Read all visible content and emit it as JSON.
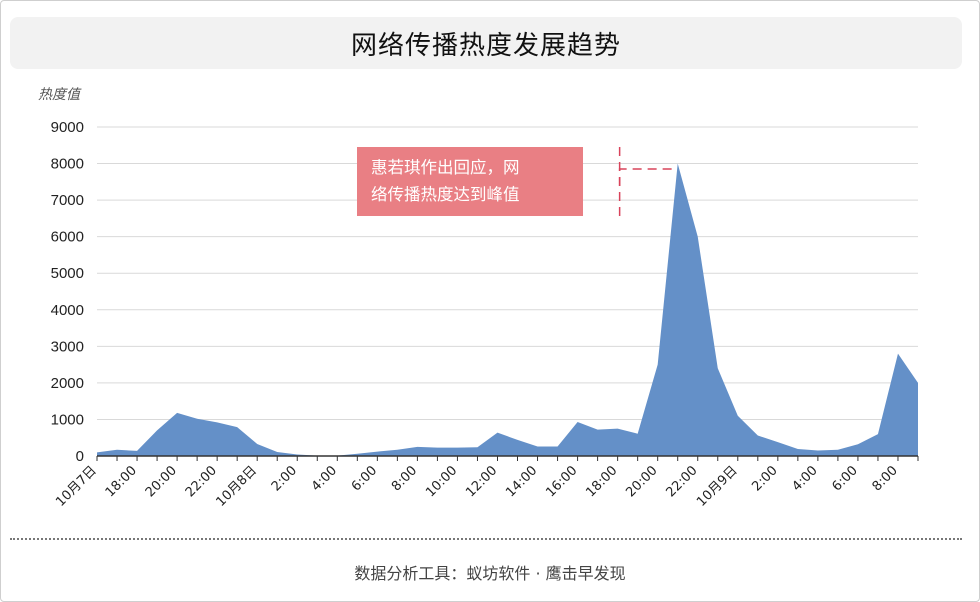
{
  "title": "网络传播热度发展趋势",
  "source": "数据分析工具：蚁坊软件 · 鹰击早发现",
  "annotation": {
    "line1": "惠若琪作出回应，网",
    "line2": "络传播热度达到峰值"
  },
  "colors": {
    "area": "#6490c8",
    "annotation_bg": "#e97f84",
    "annotation_line": "#d9435a",
    "grid": "#d9d9d9"
  },
  "chart_data": {
    "type": "area",
    "title": "网络传播热度发展趋势",
    "ylabel": "热度值",
    "xlabel": "",
    "ylim": [
      0,
      9000
    ],
    "yticks": [
      0,
      1000,
      2000,
      3000,
      4000,
      5000,
      6000,
      7000,
      8000,
      9000
    ],
    "grid": true,
    "x_tick_labels": [
      "10月7日",
      "18:00",
      "20:00",
      "22:00",
      "10月8日",
      "2:00",
      "4:00",
      "6:00",
      "8:00",
      "10:00",
      "12:00",
      "14:00",
      "16:00",
      "18:00",
      "20:00",
      "22:00",
      "10月9日",
      "2:00",
      "4:00",
      "6:00",
      "8:00"
    ],
    "x_tick_every": 2,
    "values": [
      100,
      170,
      140,
      700,
      1180,
      1020,
      920,
      790,
      330,
      110,
      40,
      10,
      10,
      60,
      120,
      170,
      250,
      230,
      230,
      240,
      640,
      440,
      260,
      260,
      930,
      720,
      750,
      610,
      2500,
      8000,
      6000,
      2400,
      1100,
      560,
      380,
      190,
      150,
      170,
      320,
      600,
      2800,
      2000
    ],
    "annotation_index": 26
  }
}
